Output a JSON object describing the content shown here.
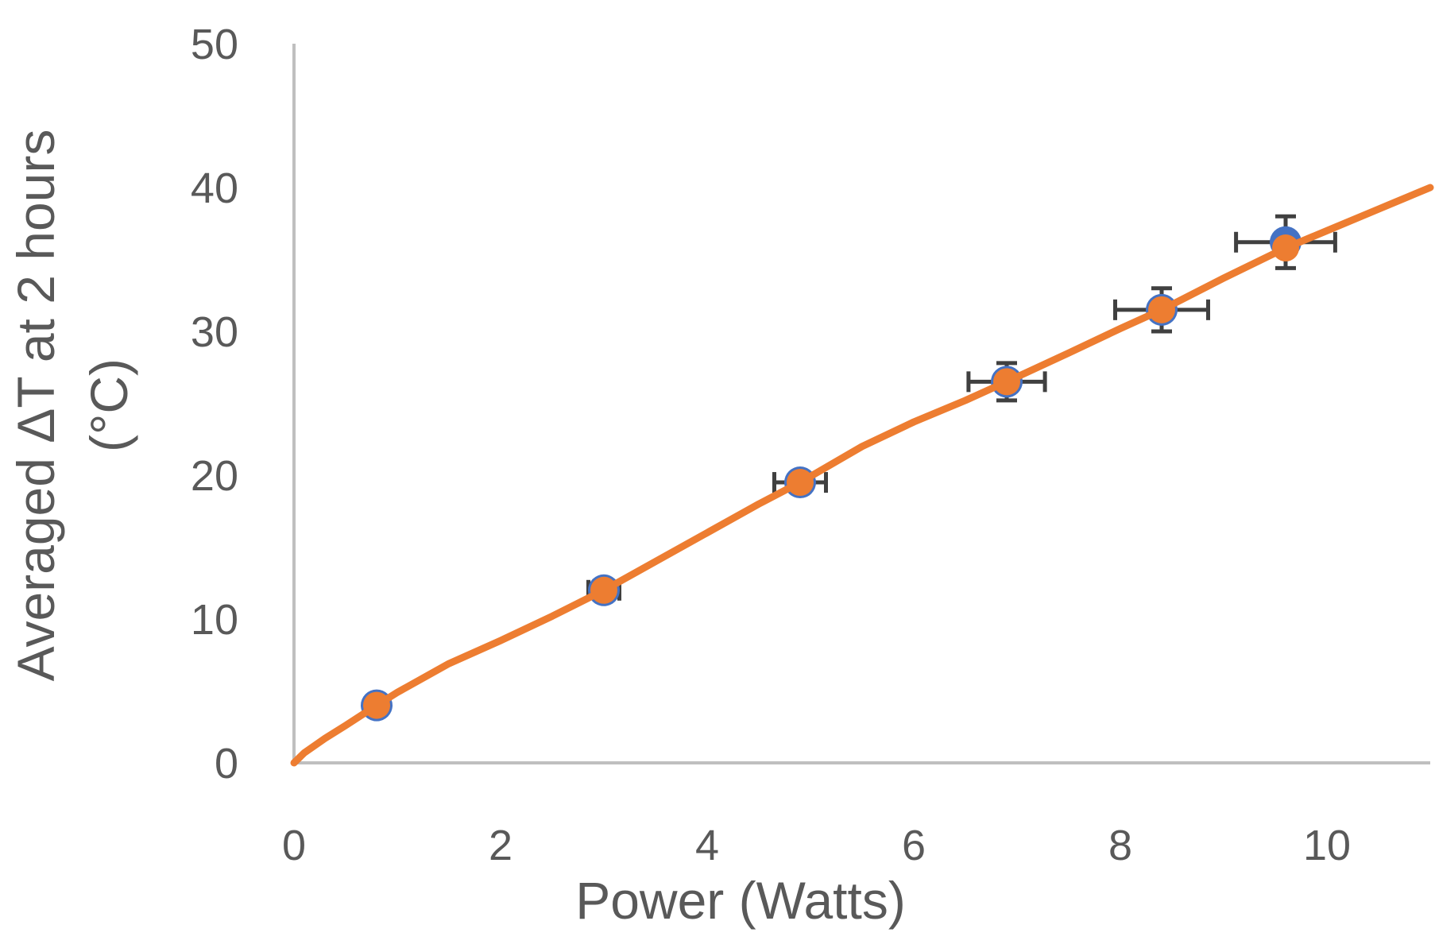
{
  "chart_data": {
    "type": "scatter",
    "title": "",
    "xlabel": "Power (Watts)",
    "ylabel_lines": [
      "Averaged ΔT at 2 hours",
      "(°C)"
    ],
    "xlim": [
      0,
      11
    ],
    "ylim": [
      0,
      50
    ],
    "x_ticks": [
      0,
      2,
      4,
      6,
      8,
      10
    ],
    "y_ticks": [
      0,
      10,
      20,
      30,
      40,
      50
    ],
    "grid": false,
    "legend": "none",
    "measured": {
      "color": "#4472c4",
      "points": [
        {
          "x": 0.8,
          "y": 4.0,
          "xerr": 0.0,
          "yerr": 0.0
        },
        {
          "x": 3.0,
          "y": 12.0,
          "xerr": 0.15,
          "yerr": 0.6
        },
        {
          "x": 4.9,
          "y": 19.5,
          "xerr": 0.25,
          "yerr": 0.7
        },
        {
          "x": 6.9,
          "y": 26.5,
          "xerr": 0.37,
          "yerr": 1.3
        },
        {
          "x": 8.4,
          "y": 31.5,
          "xerr": 0.45,
          "yerr": 1.5
        },
        {
          "x": 9.6,
          "y": 36.2,
          "xerr": 0.48,
          "yerr": 1.8
        }
      ]
    },
    "model": {
      "color": "#ed7d31",
      "points": [
        {
          "x": 0.8,
          "y": 4.0
        },
        {
          "x": 3.0,
          "y": 12.0
        },
        {
          "x": 4.9,
          "y": 19.5
        },
        {
          "x": 6.9,
          "y": 26.5
        },
        {
          "x": 8.4,
          "y": 31.5
        },
        {
          "x": 9.6,
          "y": 35.8
        }
      ],
      "curve": [
        [
          0.0,
          0.0
        ],
        [
          0.1,
          0.7
        ],
        [
          0.3,
          1.7
        ],
        [
          0.5,
          2.6
        ],
        [
          0.8,
          4.0
        ],
        [
          1.0,
          4.9
        ],
        [
          1.5,
          6.9
        ],
        [
          2.0,
          8.5
        ],
        [
          2.5,
          10.2
        ],
        [
          3.0,
          12.0
        ],
        [
          3.5,
          14.0
        ],
        [
          4.0,
          16.0
        ],
        [
          4.5,
          18.0
        ],
        [
          4.9,
          19.5
        ],
        [
          5.5,
          22.0
        ],
        [
          6.0,
          23.7
        ],
        [
          6.5,
          25.2
        ],
        [
          6.9,
          26.5
        ],
        [
          7.5,
          28.5
        ],
        [
          8.0,
          30.2
        ],
        [
          8.4,
          31.5
        ],
        [
          9.0,
          33.7
        ],
        [
          9.6,
          35.8
        ],
        [
          10.0,
          37.0
        ],
        [
          10.5,
          38.5
        ],
        [
          11.0,
          40.0
        ]
      ]
    },
    "colors": {
      "axis": "#bfbfbf",
      "error_bar": "#404040",
      "text": "#595959"
    }
  }
}
